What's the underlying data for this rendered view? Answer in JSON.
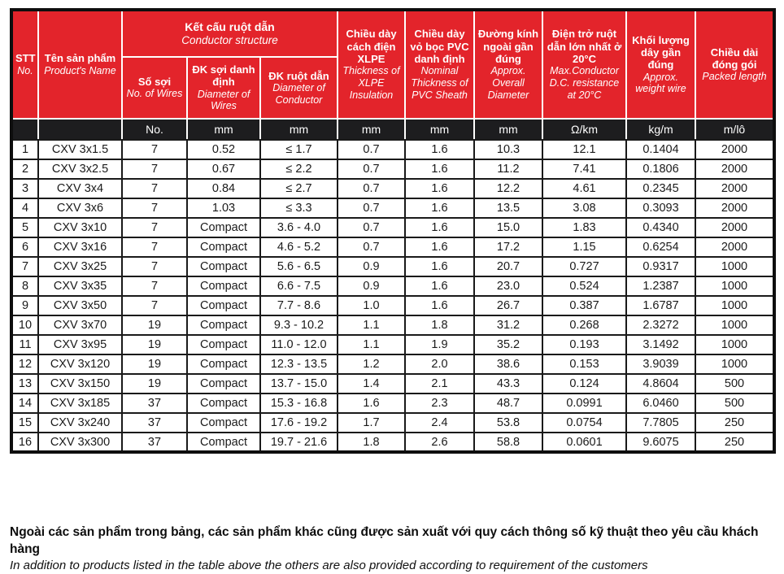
{
  "colors": {
    "header_red": "#e3242b",
    "unit_black": "#1d1d1f",
    "border_black": "#1a1a1a"
  },
  "table": {
    "header": {
      "stt": {
        "vi": "STT",
        "en": "No."
      },
      "product_name": {
        "vi": "Tên sản phẩm",
        "en": "Product's Name"
      },
      "conductor_group": {
        "vi": "Kết cấu ruột dẫn",
        "en": "Conductor structure"
      },
      "no_of_wires": {
        "vi": "Số sợi",
        "en": "No. of Wires"
      },
      "diameter_of_wires": {
        "vi": "ĐK sợi danh định",
        "en": "Diameter of Wires"
      },
      "diameter_of_conductor": {
        "vi": "ĐK ruột dẫn",
        "en": "Diameter of Conductor"
      },
      "xlpe_thickness": {
        "vi": "Chiều dày cách điện XLPE",
        "en": "Thickness of XLPE Insulation"
      },
      "pvc_thickness": {
        "vi": "Chiều dày vỏ bọc PVC danh định",
        "en": "Nominal Thickness of PVC Sheath"
      },
      "overall_diameter": {
        "vi": "Đường kính ngoài gần đúng",
        "en": "Approx. Overall Diameter"
      },
      "resistance": {
        "vi": "Điện trở ruột dẫn lớn nhất ở 20°C",
        "en": "Max.Conductor D.C. resistance at 20°C"
      },
      "weight": {
        "vi": "Khối lượng dây gần đúng",
        "en": "Approx. weight wire"
      },
      "packed_length": {
        "vi": "Chiều dài đóng gói",
        "en": "Packed length"
      }
    },
    "units": [
      "",
      "",
      "No.",
      "mm",
      "mm",
      "mm",
      "mm",
      "mm",
      "Ω/km",
      "kg/m",
      "m/lô"
    ],
    "rows": [
      [
        "1",
        "CXV 3x1.5",
        "7",
        "0.52",
        "≤ 1.7",
        "0.7",
        "1.6",
        "10.3",
        "12.1",
        "0.1404",
        "2000"
      ],
      [
        "2",
        "CXV 3x2.5",
        "7",
        "0.67",
        "≤ 2.2",
        "0.7",
        "1.6",
        "11.2",
        "7.41",
        "0.1806",
        "2000"
      ],
      [
        "3",
        "CXV 3x4",
        "7",
        "0.84",
        "≤ 2.7",
        "0.7",
        "1.6",
        "12.2",
        "4.61",
        "0.2345",
        "2000"
      ],
      [
        "4",
        "CXV 3x6",
        "7",
        "1.03",
        "≤ 3.3",
        "0.7",
        "1.6",
        "13.5",
        "3.08",
        "0.3093",
        "2000"
      ],
      [
        "5",
        "CXV 3x10",
        "7",
        "Compact",
        "3.6 - 4.0",
        "0.7",
        "1.6",
        "15.0",
        "1.83",
        "0.4340",
        "2000"
      ],
      [
        "6",
        "CXV 3x16",
        "7",
        "Compact",
        "4.6 - 5.2",
        "0.7",
        "1.6",
        "17.2",
        "1.15",
        "0.6254",
        "2000"
      ],
      [
        "7",
        "CXV 3x25",
        "7",
        "Compact",
        "5.6 - 6.5",
        "0.9",
        "1.6",
        "20.7",
        "0.727",
        "0.9317",
        "1000"
      ],
      [
        "8",
        "CXV 3x35",
        "7",
        "Compact",
        "6.6 - 7.5",
        "0.9",
        "1.6",
        "23.0",
        "0.524",
        "1.2387",
        "1000"
      ],
      [
        "9",
        "CXV 3x50",
        "7",
        "Compact",
        "7.7 - 8.6",
        "1.0",
        "1.6",
        "26.7",
        "0.387",
        "1.6787",
        "1000"
      ],
      [
        "10",
        "CXV 3x70",
        "19",
        "Compact",
        "9.3 - 10.2",
        "1.1",
        "1.8",
        "31.2",
        "0.268",
        "2.3272",
        "1000"
      ],
      [
        "11",
        "CXV 3x95",
        "19",
        "Compact",
        "11.0 - 12.0",
        "1.1",
        "1.9",
        "35.2",
        "0.193",
        "3.1492",
        "1000"
      ],
      [
        "12",
        "CXV 3x120",
        "19",
        "Compact",
        "12.3 - 13.5",
        "1.2",
        "2.0",
        "38.6",
        "0.153",
        "3.9039",
        "1000"
      ],
      [
        "13",
        "CXV 3x150",
        "19",
        "Compact",
        "13.7 - 15.0",
        "1.4",
        "2.1",
        "43.3",
        "0.124",
        "4.8604",
        "500"
      ],
      [
        "14",
        "CXV 3x185",
        "37",
        "Compact",
        "15.3 - 16.8",
        "1.6",
        "2.3",
        "48.7",
        "0.0991",
        "6.0460",
        "500"
      ],
      [
        "15",
        "CXV 3x240",
        "37",
        "Compact",
        "17.6 - 19.2",
        "1.7",
        "2.4",
        "53.8",
        "0.0754",
        "7.7805",
        "250"
      ],
      [
        "16",
        "CXV 3x300",
        "37",
        "Compact",
        "19.7 - 21.6",
        "1.8",
        "2.6",
        "58.8",
        "0.0601",
        "9.6075",
        "250"
      ]
    ],
    "column_keys": [
      "stt",
      "product-name",
      "no-of-wires",
      "diameter-of-wires",
      "diameter-of-conductor",
      "xlpe-thickness",
      "pvc-thickness",
      "overall-diameter",
      "resistance",
      "weight",
      "packed-length"
    ]
  },
  "footer": {
    "vi": "Ngoài các sản phẩm trong bảng, các sản phẩm khác cũng được sản xuất với quy cách thông số kỹ thuật theo yêu cầu khách hàng",
    "en": "In addition to products listed in the table above the others are also provided according to requirement of the customers"
  }
}
